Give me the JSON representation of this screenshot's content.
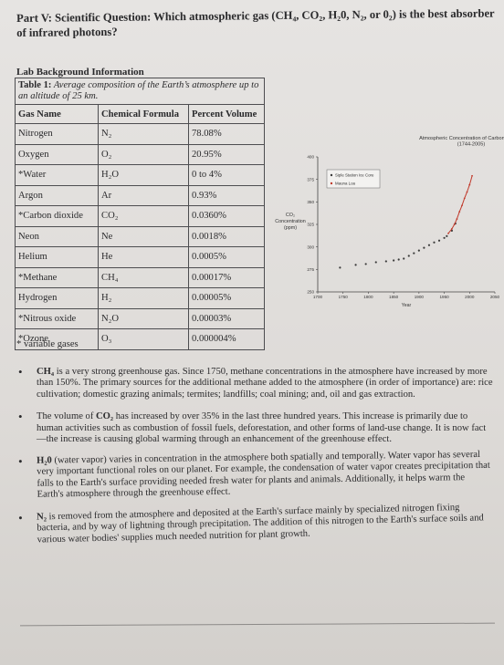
{
  "heading": "Part V: Scientific Question: Which atmospheric gas (CH₄, CO₂, H₂0, N₂, or 0₂) is the best absorber of infrared photons?",
  "lab_title": "Lab Background Information",
  "table": {
    "caption_label": "Table 1:",
    "caption_text": "Average composition of the Earth’s atmosphere up to an altitude of 25 km.",
    "headers": [
      "Gas Name",
      "Chemical Formula",
      "Percent Volume"
    ],
    "rows": [
      [
        "Nitrogen",
        "N₂",
        "78.08%"
      ],
      [
        "Oxygen",
        "O₂",
        "20.95%"
      ],
      [
        "*Water",
        "H₂O",
        "0 to 4%"
      ],
      [
        "Argon",
        "Ar",
        "0.93%"
      ],
      [
        "*Carbon dioxide",
        "CO₂",
        "0.0360%"
      ],
      [
        "Neon",
        "Ne",
        "0.0018%"
      ],
      [
        "Helium",
        "He",
        "0.0005%"
      ],
      [
        "*Methane",
        "CH₄",
        "0.00017%"
      ],
      [
        "Hydrogen",
        "H₂",
        "0.00005%"
      ],
      [
        "*Nitrous oxide",
        "N₂O",
        "0.00003%"
      ],
      [
        "*Ozone",
        "O₃",
        "0.000004%"
      ]
    ],
    "footnote": "* variable gases"
  },
  "chart_data": {
    "type": "scatter",
    "title": "Atmospheric Concentration of Carbon Dioxide (1744-2005)",
    "ylabel": "CO₂ Concentration (ppm)",
    "xlabel": "Year",
    "xlim": [
      1700,
      2050
    ],
    "ylim": [
      250,
      400
    ],
    "x_ticks": [
      "1700",
      "1750",
      "1800",
      "1850",
      "1900",
      "1950",
      "2000",
      "2050"
    ],
    "y_ticks": [
      "250",
      "275",
      "300",
      "325",
      "350",
      "375",
      "400"
    ],
    "legend_position": "top-left",
    "series": [
      {
        "name": "Siple Station Ice Core",
        "color": "#3a3a3a",
        "points": [
          [
            1744,
            277
          ],
          [
            1775,
            280
          ],
          [
            1795,
            281
          ],
          [
            1815,
            283
          ],
          [
            1835,
            284
          ],
          [
            1850,
            285
          ],
          [
            1860,
            286
          ],
          [
            1870,
            287
          ],
          [
            1880,
            290
          ],
          [
            1890,
            293
          ],
          [
            1900,
            296
          ],
          [
            1910,
            299
          ],
          [
            1920,
            302
          ],
          [
            1930,
            305
          ],
          [
            1940,
            307
          ],
          [
            1950,
            310
          ],
          [
            1955,
            312
          ],
          [
            1965,
            318
          ],
          [
            1972,
            326
          ]
        ]
      },
      {
        "name": "Mauna Loa",
        "color": "#c0392b",
        "points": [
          [
            1958,
            315
          ],
          [
            1965,
            320
          ],
          [
            1970,
            325
          ],
          [
            1975,
            331
          ],
          [
            1980,
            339
          ],
          [
            1985,
            346
          ],
          [
            1990,
            354
          ],
          [
            1995,
            361
          ],
          [
            2000,
            369
          ],
          [
            2005,
            379
          ]
        ]
      }
    ]
  },
  "bullets": [
    {
      "formula": "CH₄",
      "text": " is a very strong greenhouse gas.  Since 1750, methane concentrations in the atmosphere have increased by more than 150%. The primary sources for the additional methane added to the atmosphere (in order of importance) are: rice cultivation; domestic grazing animals; termites; landfills; coal mining; and, oil and gas extraction."
    },
    {
      "lead": "The volume of ",
      "formula": "CO₂",
      "text": " has increased by over 35% in the last three hundred years.  This increase is primarily due to human activities such as combustion of fossil fuels, deforestation, and other forms of land-use change.  It is now fact—the increase is causing global warming through an enhancement of the greenhouse effect."
    },
    {
      "formula": "H₂0",
      "text": " (water vapor) varies in concentration in the atmosphere both spatially and temporally.  Water vapor has several very important functional roles on our planet.  For example, the condensation of water vapor creates precipitation that falls to the Earth's surface providing needed fresh water for plants and animals.  Additionally, it helps warm the Earth's atmosphere through the greenhouse effect."
    },
    {
      "formula": "N₂",
      "text": " is removed from the atmosphere and deposited at the Earth's surface mainly by specialized nitrogen fixing bacteria, and by way of lightning through precipitation. The addition of this nitrogen to the Earth's surface soils and various water bodies' supplies much needed nutrition for plant growth."
    }
  ]
}
